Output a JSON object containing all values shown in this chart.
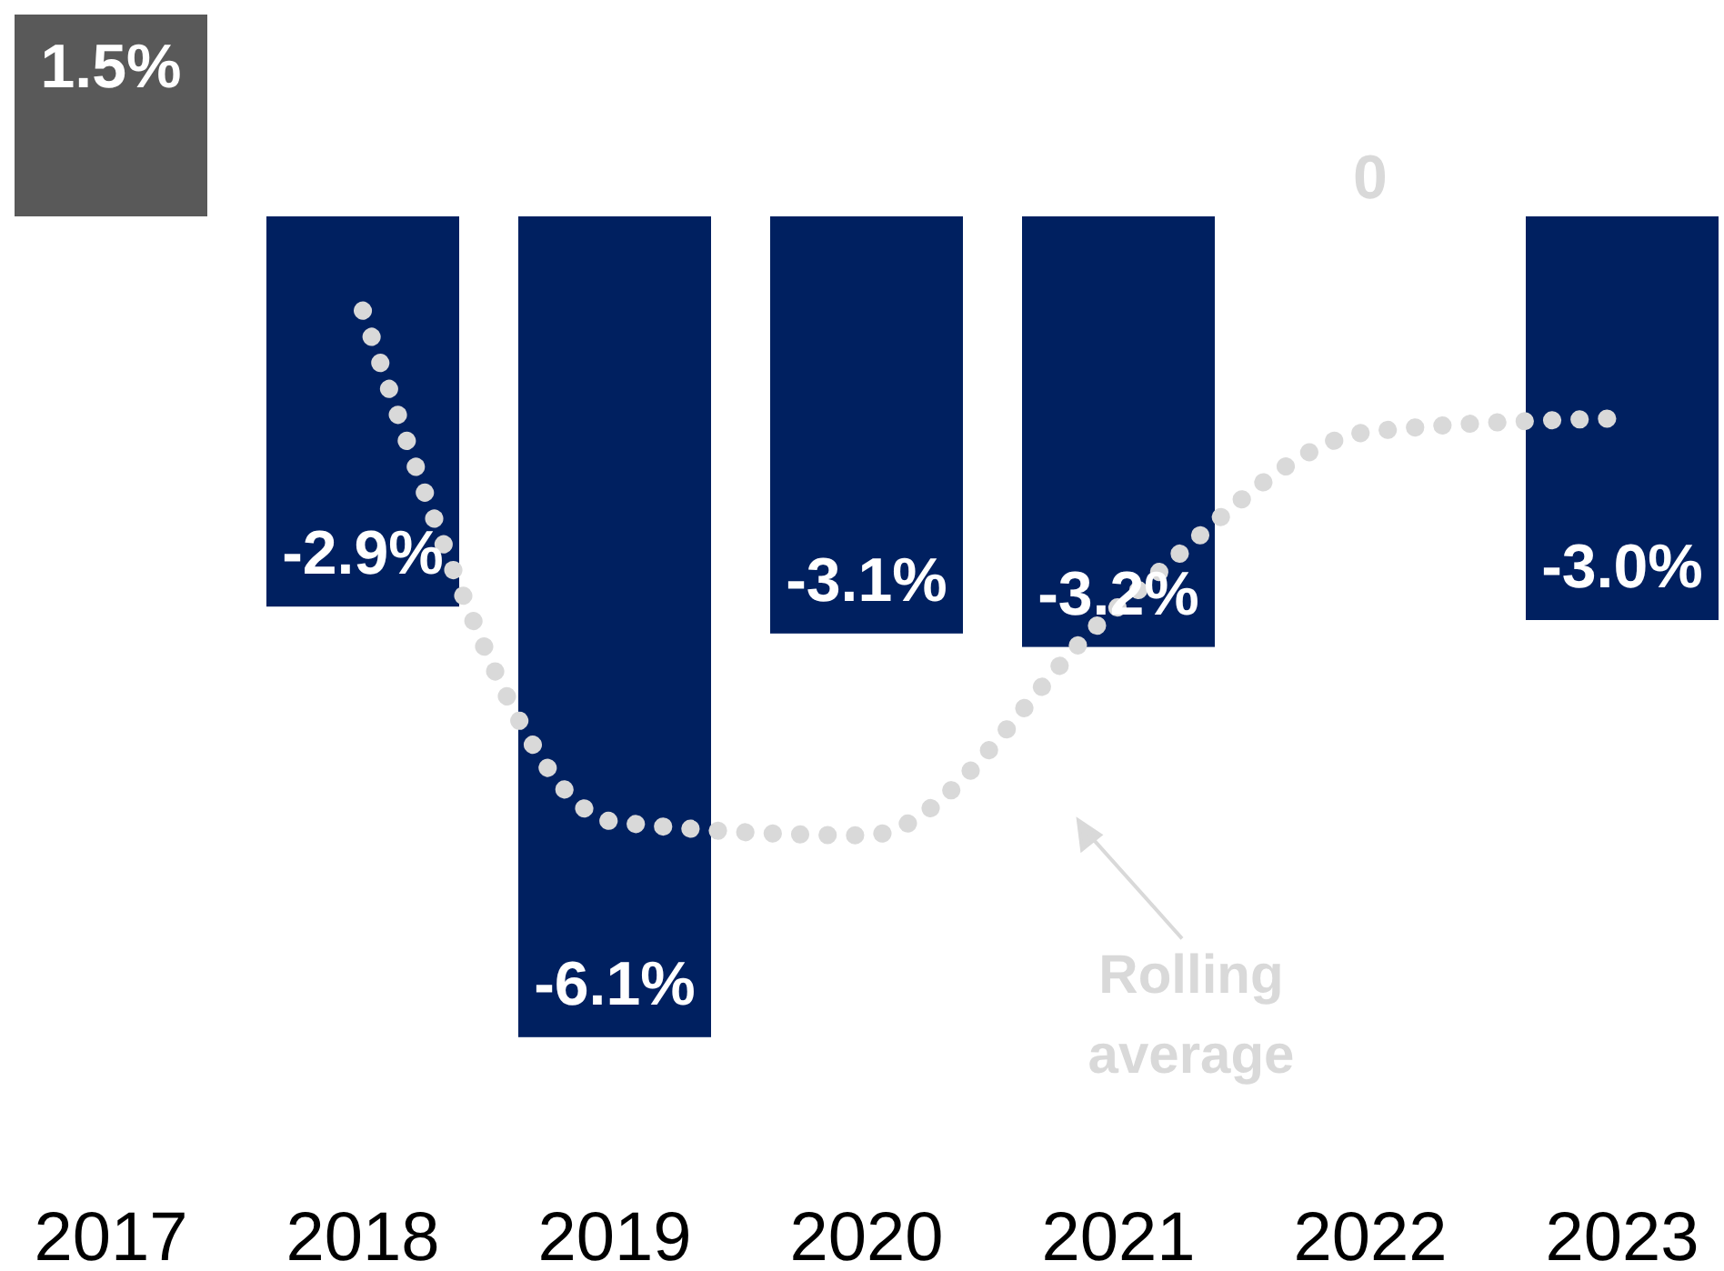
{
  "chart_data": {
    "type": "bar",
    "categories": [
      "2017",
      "2018",
      "2019",
      "2020",
      "2021",
      "2022",
      "2023"
    ],
    "tick_labels": "x",
    "legend": "bottom right",
    "series": [
      {
        "values": [
          1.5,
          -2.9,
          -6.1,
          -3.1,
          -3.2,
          0,
          -3.0
        ],
        "colors": [
          "#595959",
          "#002060",
          "#002060",
          "#002060",
          "#002060",
          "#002060",
          "#002060"
        ],
        "value_labels": [
          "1.5%",
          "-2.9%",
          "-6.1%",
          "-3.1%",
          "-3.2%",
          "0",
          "-3.0%"
        ]
      },
      {
        "type": "line",
        "name": "Rolling average",
        "color": "#d9d9d9",
        "line_style": "dotted",
        "values": [
          null,
          -0.7,
          -4.5,
          -4.6,
          -2.9,
          -1.6,
          -1.5
        ]
      }
    ]
  }
}
